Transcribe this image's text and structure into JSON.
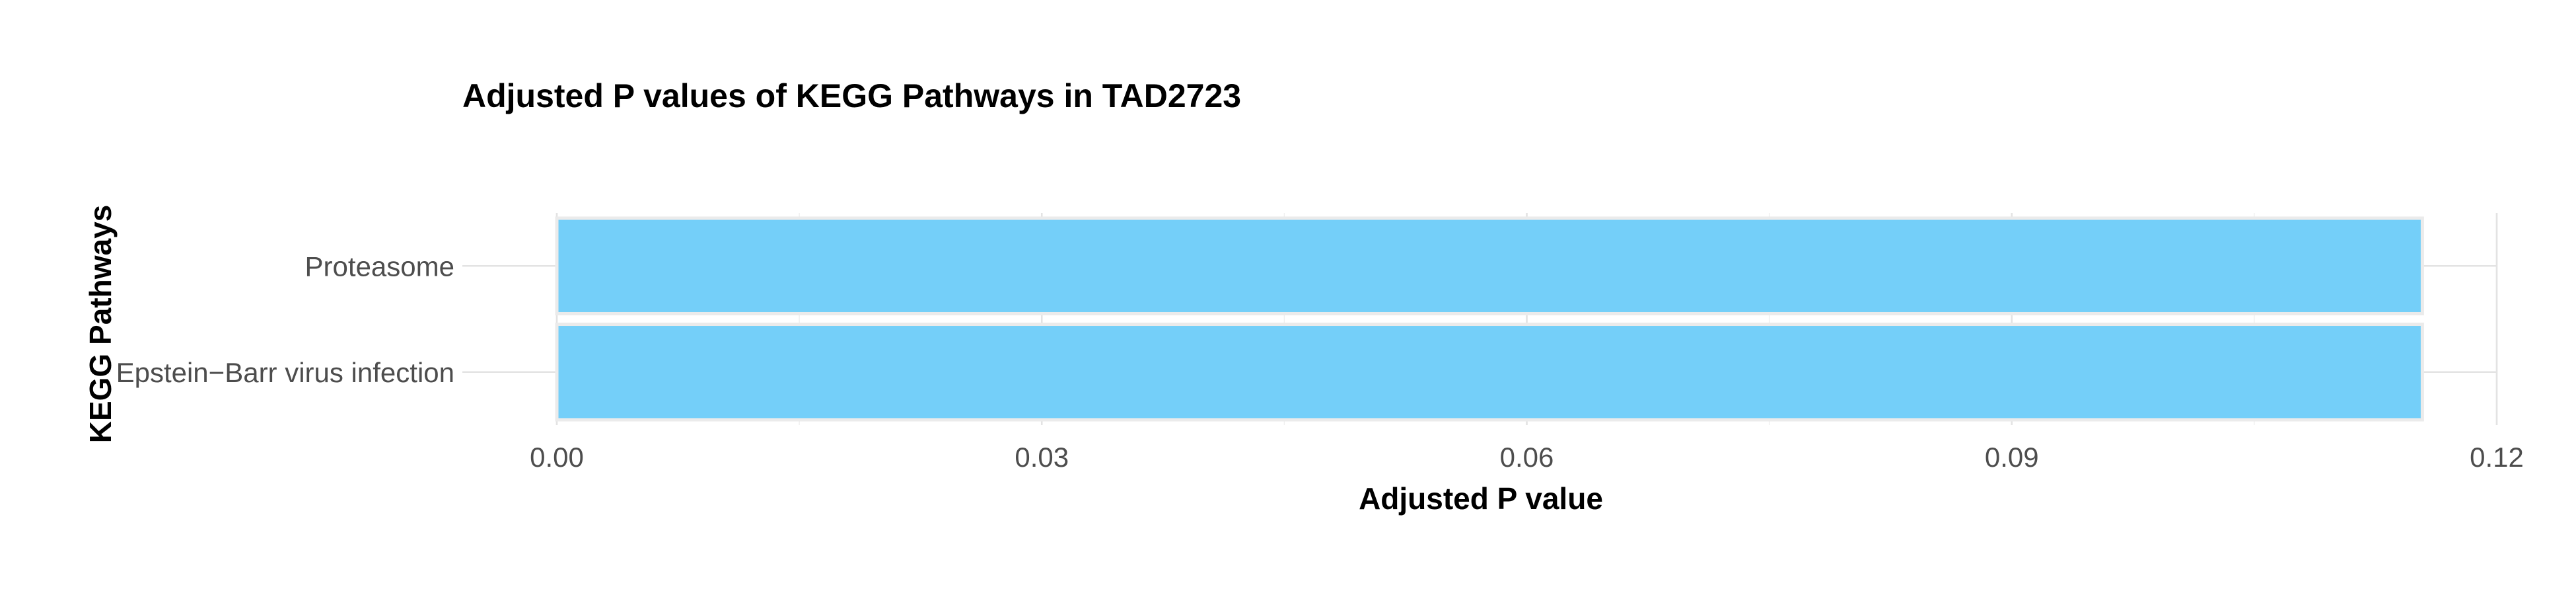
{
  "chart_data": {
    "type": "bar",
    "orientation": "horizontal",
    "title": "Adjusted P values of KEGG Pathways in TAD2723",
    "xlabel": "Adjusted P value",
    "ylabel": "KEGG Pathways",
    "categories": [
      "Proteasome",
      "Epstein−Barr virus infection"
    ],
    "values": [
      0.1154,
      0.1154
    ],
    "xlim": [
      0,
      0.12
    ],
    "xticks": [
      "0.00",
      "0.03",
      "0.06",
      "0.09",
      "0.12"
    ],
    "grid": true,
    "legend": "none",
    "bar_color": "#74cff9"
  }
}
